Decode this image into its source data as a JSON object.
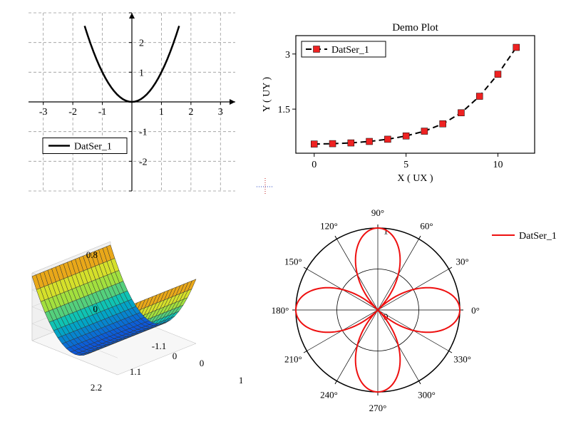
{
  "parabola": {
    "type": "line",
    "legend_label": "DatSer_1",
    "xlim": [
      -3.5,
      3.5
    ],
    "ylim": [
      -3,
      3
    ],
    "xtick_step": 1,
    "ytick_step": 1,
    "x_tick_labels": [
      "-3",
      "-2",
      "-1",
      "",
      "1",
      "2",
      "3"
    ],
    "y_tick_labels": [
      "",
      "-2",
      "-1",
      "",
      "1",
      "2",
      ""
    ],
    "line_color": "#000000",
    "line_width": 2.5,
    "grid_color": "#999999",
    "grid_dash": "4,3",
    "axis_color": "#000000",
    "tick_fontsize": 14,
    "legend_fontsize": 14,
    "points_x": [
      -1.6,
      -1.5,
      -1.4,
      -1.3,
      -1.2,
      -1.1,
      -1.0,
      -0.9,
      -0.8,
      -0.7,
      -0.6,
      -0.5,
      -0.4,
      -0.3,
      -0.2,
      -0.1,
      0,
      0.1,
      0.2,
      0.3,
      0.4,
      0.5,
      0.6,
      0.7,
      0.8,
      0.9,
      1.0,
      1.1,
      1.2,
      1.3,
      1.4,
      1.5,
      1.6
    ],
    "points_y": [
      2.56,
      2.25,
      1.96,
      1.69,
      1.44,
      1.21,
      1.0,
      0.81,
      0.64,
      0.49,
      0.36,
      0.25,
      0.16,
      0.09,
      0.04,
      0.01,
      0,
      0.01,
      0.04,
      0.09,
      0.16,
      0.25,
      0.36,
      0.49,
      0.64,
      0.81,
      1.0,
      1.21,
      1.44,
      1.69,
      1.96,
      2.25,
      2.56
    ]
  },
  "demo_plot": {
    "type": "line-marker",
    "title": "Demo Plot",
    "title_fontsize": 15,
    "xlabel": "X ( UX )",
    "ylabel": "Y ( UY )",
    "label_fontsize": 14,
    "legend_label": "DatSer_1",
    "xlim": [
      -1,
      12
    ],
    "ylim": [
      0.3,
      3.5
    ],
    "xtick_positions": [
      0,
      5,
      10
    ],
    "ytick_positions": [
      1.5,
      3
    ],
    "xtick_labels": [
      "0",
      "5",
      "10"
    ],
    "ytick_labels": [
      "1.5",
      "3"
    ],
    "line_color": "#000000",
    "line_width": 2,
    "line_dash": "8,5",
    "marker_style": "square",
    "marker_color": "#ee2222",
    "marker_size": 9,
    "border_color": "#000000",
    "points_x": [
      0,
      1,
      2,
      3,
      4,
      5,
      6,
      7,
      8,
      9,
      10,
      11
    ],
    "points_y": [
      0.55,
      0.56,
      0.58,
      0.62,
      0.68,
      0.77,
      0.9,
      1.1,
      1.4,
      1.85,
      2.45,
      3.18
    ]
  },
  "surface": {
    "type": "surface3d",
    "x_ticks": [
      0,
      1.1,
      2.2
    ],
    "y_ticks": [
      -1.1,
      0,
      1.1
    ],
    "z_ticks": [
      0,
      0.8
    ],
    "x_tick_labels": [
      "0",
      "1.1",
      "2.2"
    ],
    "y_tick_labels": [
      "-1.1",
      "0",
      "1.1"
    ],
    "z_tick_labels": [
      "0",
      "0.8"
    ],
    "tick_fontsize": 13,
    "mesh_color": "#333333",
    "mesh_width": 0.5,
    "colormap_low": "#1040e0",
    "colormap_mid1": "#00c0c0",
    "colormap_mid2": "#a0e040",
    "colormap_mid3": "#f0e020",
    "colormap_high": "#e05010",
    "grid_nx": 20,
    "grid_ny": 20
  },
  "polar": {
    "type": "polar",
    "legend_label": "DatSer_1",
    "line_color": "#ee1010",
    "line_width": 2,
    "axis_color": "#000000",
    "tick_fontsize": 13,
    "angle_labels": [
      "0°",
      "30°",
      "60°",
      "90°",
      "120°",
      "150°",
      "180°",
      "210°",
      "240°",
      "270°",
      "300°",
      "330°"
    ],
    "center_label": "0",
    "radial_tick_label": "1",
    "radial_rings": [
      0.5,
      1.0
    ],
    "petal_count": 4,
    "rmax": 1.0
  },
  "crosshair": {
    "color_h": "#2040c0",
    "color_v": "#c02020",
    "dash": "1,2"
  }
}
